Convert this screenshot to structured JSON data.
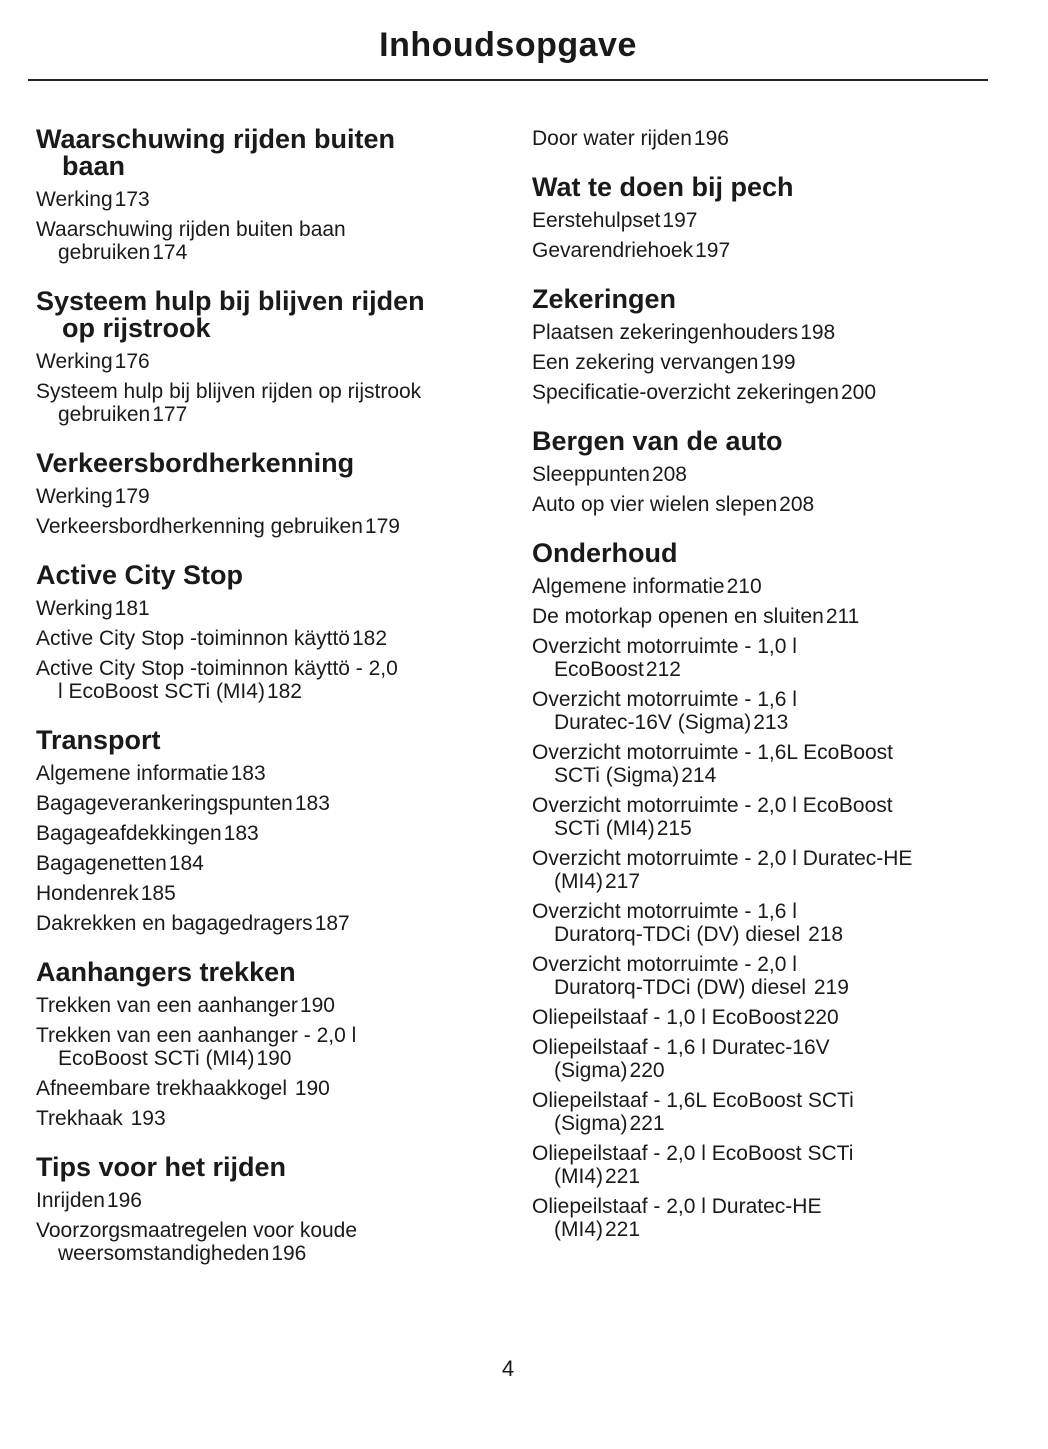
{
  "title": "Inhoudsopgave",
  "page_number": "4",
  "left": [
    {
      "heading": [
        "Waarschuwing rijden buiten",
        "baan"
      ],
      "entries": [
        {
          "text": [
            "Werking"
          ],
          "page": "173"
        },
        {
          "text": [
            "Waarschuwing rijden buiten baan",
            "gebruiken"
          ],
          "page": "174"
        }
      ]
    },
    {
      "heading": [
        "Systeem hulp bij blijven rijden",
        "op rijstrook"
      ],
      "entries": [
        {
          "text": [
            "Werking"
          ],
          "page": "176"
        },
        {
          "text": [
            "Systeem hulp bij blijven rijden op rijstrook",
            "gebruiken"
          ],
          "page": "177"
        }
      ]
    },
    {
      "heading": [
        "Verkeersbordherkenning"
      ],
      "entries": [
        {
          "text": [
            "Werking"
          ],
          "page": "179"
        },
        {
          "text": [
            "Verkeersbordherkenning gebruiken"
          ],
          "page": "179"
        }
      ]
    },
    {
      "heading": [
        "Active City Stop"
      ],
      "entries": [
        {
          "text": [
            "Werking"
          ],
          "page": "181"
        },
        {
          "text": [
            "Active City Stop -toiminnon käyttö"
          ],
          "page": "182"
        },
        {
          "text": [
            "Active City Stop -toiminnon käyttö - 2,0",
            "l EcoBoost SCTi (MI4)"
          ],
          "page": "182"
        }
      ]
    },
    {
      "heading": [
        "Transport"
      ],
      "entries": [
        {
          "text": [
            "Algemene informatie"
          ],
          "page": "183"
        },
        {
          "text": [
            "Bagageverankeringspunten"
          ],
          "page": "183"
        },
        {
          "text": [
            "Bagageafdekkingen"
          ],
          "page": "183"
        },
        {
          "text": [
            "Bagagenetten"
          ],
          "page": "184"
        },
        {
          "text": [
            "Hondenrek"
          ],
          "page": "185"
        },
        {
          "text": [
            "Dakrekken en bagagedragers"
          ],
          "page": "187"
        }
      ]
    },
    {
      "heading": [
        "Aanhangers trekken"
      ],
      "entries": [
        {
          "text": [
            "Trekken van een aanhanger"
          ],
          "page": "190"
        },
        {
          "text": [
            "Trekken van een aanhanger - 2,0 l",
            "EcoBoost SCTi (MI4)"
          ],
          "page": "190"
        },
        {
          "text": [
            "Afneembare trekhaakkogel "
          ],
          "page": "190"
        },
        {
          "text": [
            "Trekhaak "
          ],
          "page": "193"
        }
      ]
    },
    {
      "heading": [
        "Tips voor het rijden"
      ],
      "entries": [
        {
          "text": [
            "Inrijden"
          ],
          "page": "196"
        },
        {
          "text": [
            "Voorzorgsmaatregelen voor koude",
            "weersomstandigheden"
          ],
          "page": "196"
        }
      ]
    }
  ],
  "right": [
    {
      "heading": [],
      "entries": [
        {
          "text": [
            "Door water rijden"
          ],
          "page": "196"
        }
      ]
    },
    {
      "heading": [
        "Wat te doen bij pech"
      ],
      "entries": [
        {
          "text": [
            "Eerstehulpset"
          ],
          "page": "197"
        },
        {
          "text": [
            "Gevarendriehoek"
          ],
          "page": "197"
        }
      ]
    },
    {
      "heading": [
        "Zekeringen"
      ],
      "entries": [
        {
          "text": [
            "Plaatsen zekeringenhouders"
          ],
          "page": "198"
        },
        {
          "text": [
            "Een zekering vervangen"
          ],
          "page": "199"
        },
        {
          "text": [
            "Specificatie-overzicht zekeringen"
          ],
          "page": "200"
        }
      ]
    },
    {
      "heading": [
        "Bergen van de auto"
      ],
      "entries": [
        {
          "text": [
            "Sleeppunten"
          ],
          "page": "208"
        },
        {
          "text": [
            "Auto op vier wielen slepen"
          ],
          "page": "208"
        }
      ]
    },
    {
      "heading": [
        "Onderhoud"
      ],
      "entries": [
        {
          "text": [
            "Algemene informatie"
          ],
          "page": "210"
        },
        {
          "text": [
            "De motorkap openen en sluiten"
          ],
          "page": "211"
        },
        {
          "text": [
            "Overzicht motorruimte - 1,0 l",
            "EcoBoost"
          ],
          "page": "212"
        },
        {
          "text": [
            "Overzicht motorruimte - 1,6 l",
            "Duratec-16V (Sigma)"
          ],
          "page": "213"
        },
        {
          "text": [
            "Overzicht motorruimte - 1,6L EcoBoost",
            "SCTi (Sigma)"
          ],
          "page": "214"
        },
        {
          "text": [
            "Overzicht motorruimte - 2,0 l EcoBoost",
            "SCTi (MI4)"
          ],
          "page": "215"
        },
        {
          "text": [
            "Overzicht motorruimte - 2,0 l Duratec-HE",
            "(MI4)"
          ],
          "page": "217"
        },
        {
          "text": [
            "Overzicht motorruimte - 1,6 l",
            "Duratorq-TDCi (DV) diesel "
          ],
          "page": "218"
        },
        {
          "text": [
            "Overzicht motorruimte - 2,0 l",
            "Duratorq-TDCi (DW) diesel "
          ],
          "page": "219"
        },
        {
          "text": [
            "Oliepeilstaaf - 1,0 l EcoBoost"
          ],
          "page": "220"
        },
        {
          "text": [
            "Oliepeilstaaf - 1,6 l Duratec-16V",
            "(Sigma)"
          ],
          "page": "220"
        },
        {
          "text": [
            "Oliepeilstaaf - 1,6L EcoBoost SCTi",
            "(Sigma)"
          ],
          "page": "221"
        },
        {
          "text": [
            "Oliepeilstaaf - 2,0 l EcoBoost SCTi",
            "(MI4)"
          ],
          "page": "221"
        },
        {
          "text": [
            "Oliepeilstaaf - 2,0 l Duratec-HE",
            "(MI4)"
          ],
          "page": "221"
        }
      ]
    }
  ]
}
